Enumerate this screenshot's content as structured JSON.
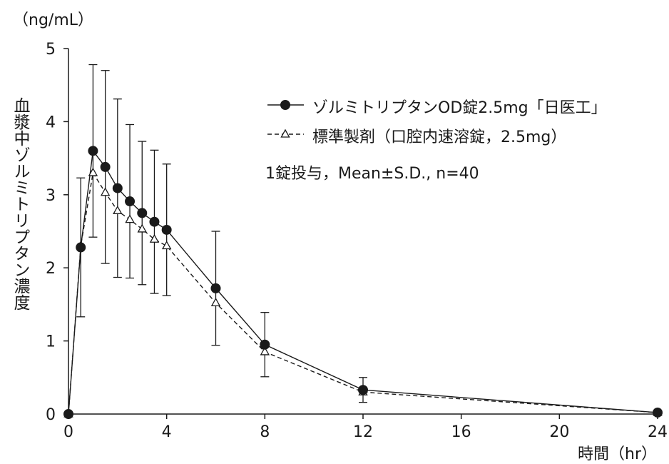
{
  "chart_data": {
    "type": "line",
    "unit_label": "（ng/mL）",
    "ylabel": "血漿中ゾルミトリプタン濃度",
    "xlabel": "時間（hr）",
    "xlim": [
      0,
      24
    ],
    "ylim": [
      0,
      5
    ],
    "xticks": [
      "0",
      "4",
      "8",
      "12",
      "16",
      "20",
      "24"
    ],
    "yticks": [
      "0",
      "1",
      "2",
      "3",
      "4",
      "5"
    ],
    "x": [
      0,
      0.5,
      1,
      1.5,
      2,
      2.5,
      3,
      3.5,
      4,
      6,
      8,
      12,
      24
    ],
    "series": [
      {
        "name": "ゾルミトリプタンOD錠2.5mg「日医工」",
        "marker": "filled-circle",
        "line": "solid",
        "values": [
          0,
          2.28,
          3.6,
          3.38,
          3.09,
          2.91,
          2.75,
          2.63,
          2.52,
          1.72,
          0.95,
          0.33,
          0.02
        ],
        "sd": [
          0,
          0.95,
          1.18,
          1.32,
          1.22,
          1.05,
          0.98,
          0.98,
          0.9,
          0.78,
          0.44,
          0.17,
          0
        ]
      },
      {
        "name": "標準製剤（口腔内速溶錠，2.5mg）",
        "marker": "open-triangle",
        "line": "dashed",
        "values": [
          0,
          2.3,
          3.3,
          3.03,
          2.78,
          2.66,
          2.53,
          2.39,
          2.3,
          1.52,
          0.85,
          0.3,
          0.02
        ],
        "sd": []
      }
    ],
    "annotation": "1錠投与，Mean±S.D., n=40",
    "legend_position": "top-right",
    "grid": false,
    "color": "#1a1a1a"
  }
}
